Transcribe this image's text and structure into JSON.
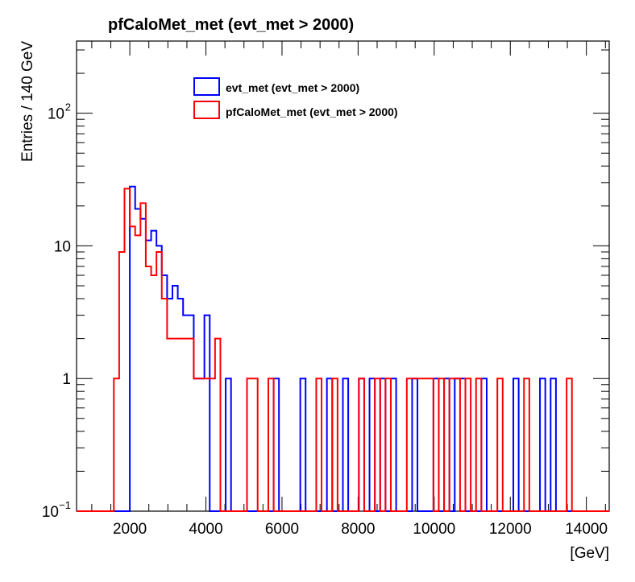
{
  "chart_data": {
    "type": "histogram",
    "title": "pfCaloMet_met (evt_met > 2000)",
    "xlabel": "[GeV]",
    "ylabel": "Entries / 140 GeV",
    "xlim": [
      600,
      14600
    ],
    "ylim": [
      0.1,
      350
    ],
    "y_scale": "log",
    "bin_width": 140,
    "x_ticks": [
      2000,
      4000,
      6000,
      8000,
      10000,
      12000,
      14000
    ],
    "x_tick_labels": [
      "2000",
      "4000",
      "6000",
      "8000",
      "10000",
      "12000",
      "14000"
    ],
    "y_ticks": [
      0.1,
      1,
      10,
      100
    ],
    "y_tick_labels": [
      {
        "base": "10",
        "exp": "−1"
      },
      {
        "base": "1",
        "exp": ""
      },
      {
        "base": "10",
        "exp": ""
      },
      {
        "base": "10",
        "exp": "2"
      }
    ],
    "legend_position": "top-center",
    "series": [
      {
        "name": "evt_met (evt_met > 2000)",
        "color": "#0000ff",
        "bins": [
          {
            "x": 1980,
            "y": 28
          },
          {
            "x": 2120,
            "y": 19
          },
          {
            "x": 2260,
            "y": 16
          },
          {
            "x": 2400,
            "y": 11
          },
          {
            "x": 2540,
            "y": 13
          },
          {
            "x": 2680,
            "y": 10
          },
          {
            "x": 2820,
            "y": 6
          },
          {
            "x": 2960,
            "y": 4
          },
          {
            "x": 3100,
            "y": 5
          },
          {
            "x": 3240,
            "y": 4
          },
          {
            "x": 3380,
            "y": 3
          },
          {
            "x": 3520,
            "y": 3
          },
          {
            "x": 3660,
            "y": 1
          },
          {
            "x": 3800,
            "y": 1
          },
          {
            "x": 3940,
            "y": 3
          },
          {
            "x": 4500,
            "y": 1
          },
          {
            "x": 5760,
            "y": 1
          },
          {
            "x": 6460,
            "y": 1
          },
          {
            "x": 7160,
            "y": 1
          },
          {
            "x": 7580,
            "y": 1
          },
          {
            "x": 8000,
            "y": 1
          },
          {
            "x": 8280,
            "y": 1
          },
          {
            "x": 8560,
            "y": 1
          },
          {
            "x": 8840,
            "y": 1
          },
          {
            "x": 9400,
            "y": 1
          },
          {
            "x": 9960,
            "y": 1
          },
          {
            "x": 10240,
            "y": 1
          },
          {
            "x": 10520,
            "y": 1
          },
          {
            "x": 10660,
            "y": 1
          },
          {
            "x": 11220,
            "y": 1
          },
          {
            "x": 12060,
            "y": 1
          },
          {
            "x": 12760,
            "y": 1
          },
          {
            "x": 13040,
            "y": 1
          }
        ]
      },
      {
        "name": "pfCaloMet_met (evt_met > 2000)",
        "color": "#ff0000",
        "bins": [
          {
            "x": 1560,
            "y": 1
          },
          {
            "x": 1700,
            "y": 9
          },
          {
            "x": 1840,
            "y": 27
          },
          {
            "x": 1980,
            "y": 14
          },
          {
            "x": 2120,
            "y": 12
          },
          {
            "x": 2260,
            "y": 21
          },
          {
            "x": 2400,
            "y": 7
          },
          {
            "x": 2540,
            "y": 6
          },
          {
            "x": 2680,
            "y": 9
          },
          {
            "x": 2820,
            "y": 4
          },
          {
            "x": 2960,
            "y": 2
          },
          {
            "x": 3100,
            "y": 2
          },
          {
            "x": 3240,
            "y": 2
          },
          {
            "x": 3380,
            "y": 2
          },
          {
            "x": 3520,
            "y": 2
          },
          {
            "x": 3660,
            "y": 1
          },
          {
            "x": 3800,
            "y": 1
          },
          {
            "x": 3940,
            "y": 1
          },
          {
            "x": 4080,
            "y": 1
          },
          {
            "x": 4220,
            "y": 2
          },
          {
            "x": 5060,
            "y": 1
          },
          {
            "x": 5200,
            "y": 1
          },
          {
            "x": 5620,
            "y": 1
          },
          {
            "x": 6880,
            "y": 1
          },
          {
            "x": 7300,
            "y": 1
          },
          {
            "x": 8000,
            "y": 1
          },
          {
            "x": 8420,
            "y": 1
          },
          {
            "x": 8700,
            "y": 1
          },
          {
            "x": 9260,
            "y": 1
          },
          {
            "x": 9400,
            "y": 1
          },
          {
            "x": 9540,
            "y": 1
          },
          {
            "x": 9680,
            "y": 1
          },
          {
            "x": 9820,
            "y": 1
          },
          {
            "x": 10100,
            "y": 1
          },
          {
            "x": 10380,
            "y": 1
          },
          {
            "x": 10520,
            "y": 1
          },
          {
            "x": 10800,
            "y": 1
          },
          {
            "x": 11080,
            "y": 1
          },
          {
            "x": 11640,
            "y": 1
          },
          {
            "x": 12340,
            "y": 1
          },
          {
            "x": 13460,
            "y": 1
          }
        ]
      }
    ]
  }
}
